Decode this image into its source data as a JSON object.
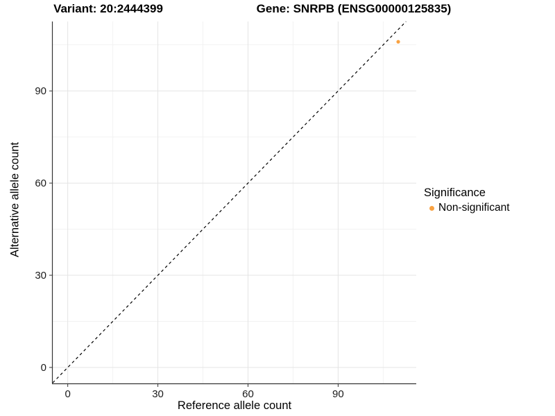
{
  "chart_data": {
    "type": "scatter",
    "title_left": "Variant: 20:2444399",
    "title_right": "Gene: SNRPB (ENSG00000125835)",
    "xlabel": "Reference allele count",
    "ylabel": "Alternative allele count",
    "x_ticks": [
      0,
      30,
      60,
      90
    ],
    "y_ticks": [
      0,
      30,
      60,
      90
    ],
    "x_minor_ticks": [
      15,
      45,
      75,
      105
    ],
    "y_minor_ticks": [
      15,
      45,
      75,
      105
    ],
    "xlim": [
      -5,
      116
    ],
    "ylim": [
      -5.2,
      112.6
    ],
    "grid": "major-and-minor",
    "legend": {
      "title": "Significance",
      "position": "right",
      "items": [
        {
          "label": "Non-significant",
          "color": "#F9A242"
        }
      ]
    },
    "series": [
      {
        "name": "Non-significant",
        "color": "#F9A242",
        "points": [
          {
            "x": 110,
            "y": 106
          }
        ]
      }
    ],
    "identity_line": {
      "equation": "y = x",
      "style": "dashed",
      "color": "#000000"
    },
    "colors": {
      "grid_major": "#E4E4E4",
      "grid_minor": "#F2F2F2",
      "axis": "#333333",
      "background": "#FFFFFF"
    }
  }
}
